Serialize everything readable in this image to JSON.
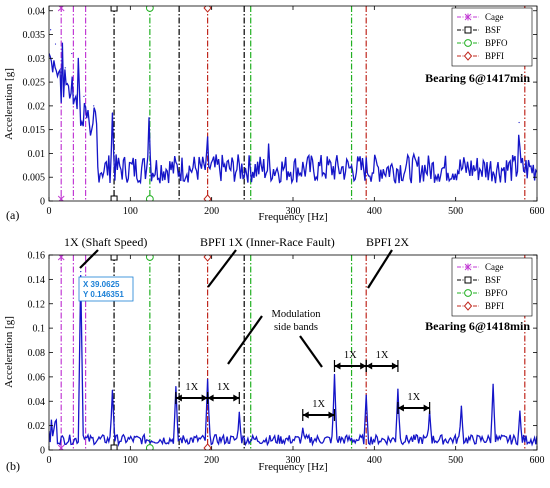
{
  "figure": {
    "panel_a_label": "(a)",
    "panel_b_label": "(b)"
  },
  "legend": [
    "Cage",
    "BSF",
    "BPFO",
    "BPFI"
  ],
  "colors": {
    "signal": "#1515c8",
    "cage": "#c23bd4",
    "bsf": "#000000",
    "bpfo": "#22b022",
    "bpfi": "#c0281e"
  },
  "chart_data": [
    {
      "type": "line",
      "panel": "(a)",
      "title": "Bearing 6@1417min",
      "xlabel": "Frequency [Hz]",
      "ylabel": "Acceleration [g]",
      "xlim": [
        0,
        600
      ],
      "ylim": [
        0,
        0.041
      ],
      "xticks": [
        0,
        100,
        200,
        300,
        400,
        500,
        600
      ],
      "yticks": [
        0,
        0.005,
        0.01,
        0.015,
        0.02,
        0.025,
        0.03,
        0.035,
        0.04
      ],
      "ytick_labels": [
        "0",
        "0.005",
        "0.01",
        "0.015",
        "0.02",
        "0.025",
        "0.03",
        "0.035",
        "0.04"
      ],
      "series": [
        {
          "name": "Cage",
          "style": "dash-dot",
          "marker": "x",
          "x": [
            15,
            30,
            45
          ]
        },
        {
          "name": "BSF",
          "style": "dash-dot",
          "marker": "square",
          "x": [
            80,
            160,
            240
          ]
        },
        {
          "name": "BPFO",
          "style": "dash-dot",
          "marker": "circle",
          "x": [
            124,
            248,
            372
          ]
        },
        {
          "name": "BPFI",
          "style": "dash-dot",
          "marker": "diamond",
          "x": [
            195,
            390,
            585
          ]
        }
      ],
      "signal_peaks": [
        {
          "x": 2,
          "y": 0.036
        },
        {
          "x": 8,
          "y": 0.033
        },
        {
          "x": 20,
          "y": 0.028
        },
        {
          "x": 28,
          "y": 0.031
        },
        {
          "x": 36,
          "y": 0.03
        },
        {
          "x": 43,
          "y": 0.022
        },
        {
          "x": 55,
          "y": 0.02
        },
        {
          "x": 78,
          "y": 0.0185
        },
        {
          "x": 123,
          "y": 0.0175
        },
        {
          "x": 195,
          "y": 0.0135
        },
        {
          "x": 270,
          "y": 0.012
        },
        {
          "x": 578,
          "y": 0.0165
        }
      ],
      "noise_floor": 0.0068
    },
    {
      "type": "line",
      "panel": "(b)",
      "title": "Bearing 6@1418min",
      "xlabel": "Frequency [Hz]",
      "ylabel": "Acceleration [g]",
      "xlim": [
        0,
        600
      ],
      "ylim": [
        0,
        0.16
      ],
      "xticks": [
        0,
        100,
        200,
        300,
        400,
        500,
        600
      ],
      "yticks": [
        0,
        0.02,
        0.04,
        0.06,
        0.08,
        0.1,
        0.12,
        0.14,
        0.16
      ],
      "ytick_labels": [
        "0",
        "0.02",
        "0.04",
        "0.06",
        "0.08",
        "0.1",
        "0.12",
        "0.14",
        "0.16"
      ],
      "series": [
        {
          "name": "Cage",
          "style": "dash-dot",
          "marker": "x",
          "x": [
            15,
            30,
            45
          ]
        },
        {
          "name": "BSF",
          "style": "dash-dot",
          "marker": "square",
          "x": [
            80,
            160,
            240
          ]
        },
        {
          "name": "BPFO",
          "style": "dash-dot",
          "marker": "circle",
          "x": [
            124,
            248,
            372
          ]
        },
        {
          "name": "BPFI",
          "style": "dash-dot",
          "marker": "diamond",
          "x": [
            195,
            390,
            585
          ]
        }
      ],
      "signal_peaks": [
        {
          "x": 39.0625,
          "y": 0.146351
        },
        {
          "x": 78,
          "y": 0.049
        },
        {
          "x": 156,
          "y": 0.052
        },
        {
          "x": 195,
          "y": 0.058
        },
        {
          "x": 234,
          "y": 0.031
        },
        {
          "x": 312,
          "y": 0.018
        },
        {
          "x": 351,
          "y": 0.062
        },
        {
          "x": 390,
          "y": 0.045
        },
        {
          "x": 429,
          "y": 0.05
        },
        {
          "x": 468,
          "y": 0.032
        },
        {
          "x": 507,
          "y": 0.036
        },
        {
          "x": 546,
          "y": 0.054
        },
        {
          "x": 579,
          "y": 0.032
        }
      ],
      "noise_floor": 0.009,
      "datatip": {
        "x_text": "X 39.0625",
        "y_text": "Y 0.146351"
      },
      "annotations": {
        "shaft": "1X (Shaft Speed)",
        "bpfi1": "BPFI 1X (Inner-Race Fault)",
        "bpfi2": "BPFI 2X",
        "modulation_line1": "Modulation",
        "modulation_line2": "side bands",
        "span_label": "1X"
      }
    }
  ]
}
